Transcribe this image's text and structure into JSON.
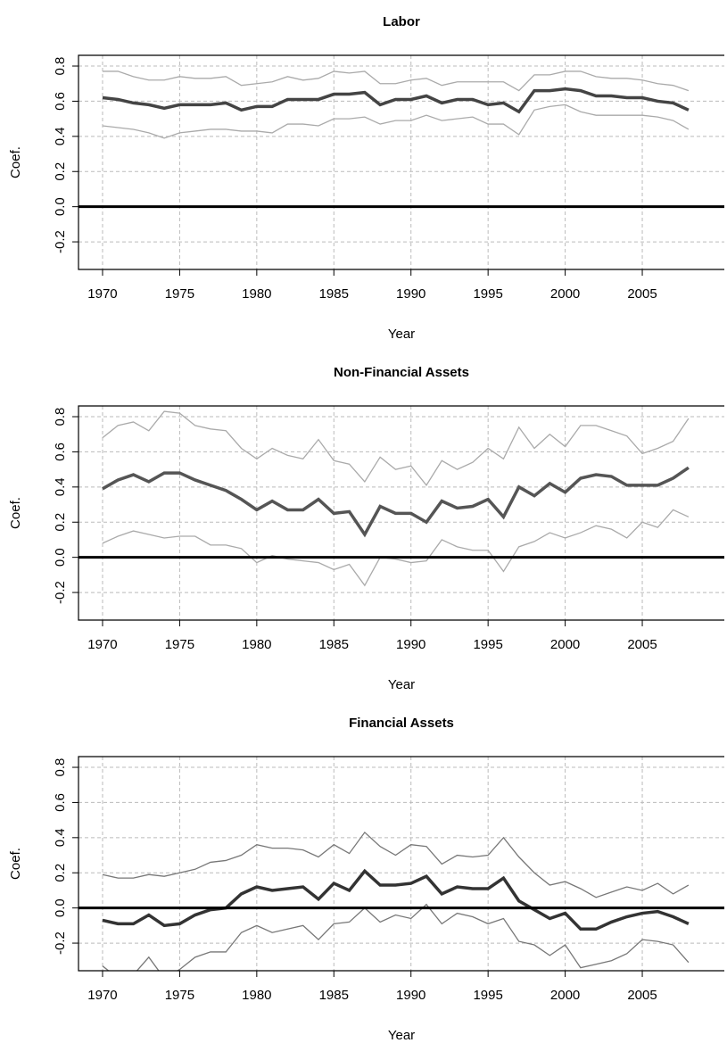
{
  "chart_data": [
    {
      "type": "line",
      "title": "Labor",
      "xlabel": "Year",
      "ylabel": "Coef.",
      "x": [
        1970,
        1971,
        1972,
        1973,
        1974,
        1975,
        1976,
        1977,
        1978,
        1979,
        1980,
        1981,
        1982,
        1983,
        1984,
        1985,
        1986,
        1987,
        1988,
        1989,
        1990,
        1991,
        1992,
        1993,
        1994,
        1995,
        1996,
        1997,
        1998,
        1999,
        2000,
        2001,
        2002,
        2003,
        2004,
        2005,
        2006,
        2007,
        2008
      ],
      "xlim": [
        1968.44,
        2010.32
      ],
      "xticks": [
        1970,
        1975,
        1980,
        1985,
        1990,
        1995,
        2000,
        2005
      ],
      "ylim": [
        -0.357,
        0.861
      ],
      "yticks": [
        -0.2,
        {
          "value": 0,
          "label": "0.0"
        },
        0.2,
        0.4,
        0.6,
        0.8
      ],
      "grid": true,
      "hline": 0,
      "series": [
        {
          "color": "#aaaaaa",
          "values": [
            0.77,
            0.77,
            0.74,
            0.72,
            0.72,
            0.74,
            0.73,
            0.73,
            0.74,
            0.69,
            0.7,
            0.71,
            0.74,
            0.72,
            0.73,
            0.77,
            0.76,
            0.77,
            0.7,
            0.7,
            0.72,
            0.73,
            0.69,
            0.71,
            0.71,
            0.71,
            0.71,
            0.66,
            0.75,
            0.75,
            0.77,
            0.77,
            0.74,
            0.73,
            0.73,
            0.72,
            0.7,
            0.69,
            0.66
          ]
        },
        {
          "color": "#aaaaaa",
          "values": [
            0.46,
            0.45,
            0.44,
            0.42,
            0.39,
            0.42,
            0.43,
            0.44,
            0.44,
            0.43,
            0.43,
            0.42,
            0.47,
            0.47,
            0.46,
            0.5,
            0.5,
            0.51,
            0.47,
            0.49,
            0.49,
            0.52,
            0.49,
            0.5,
            0.51,
            0.47,
            0.47,
            0.41,
            0.55,
            0.57,
            0.58,
            0.54,
            0.52,
            0.52,
            0.52,
            0.52,
            0.51,
            0.49,
            0.44
          ]
        },
        {
          "color": "#444444",
          "values": [
            0.62,
            0.61,
            0.59,
            0.58,
            0.56,
            0.58,
            0.58,
            0.58,
            0.59,
            0.55,
            0.57,
            0.57,
            0.61,
            0.61,
            0.61,
            0.64,
            0.64,
            0.65,
            0.58,
            0.61,
            0.61,
            0.63,
            0.59,
            0.61,
            0.61,
            0.58,
            0.59,
            0.54,
            0.66,
            0.66,
            0.67,
            0.66,
            0.63,
            0.63,
            0.62,
            0.62,
            0.6,
            0.59,
            0.55
          ]
        }
      ]
    },
    {
      "type": "line",
      "title": "Non-Financial Assets",
      "xlabel": "Year",
      "ylabel": "Coef.",
      "x": [
        1970,
        1971,
        1972,
        1973,
        1974,
        1975,
        1976,
        1977,
        1978,
        1979,
        1980,
        1981,
        1982,
        1983,
        1984,
        1985,
        1986,
        1987,
        1988,
        1989,
        1990,
        1991,
        1992,
        1993,
        1994,
        1995,
        1996,
        1997,
        1998,
        1999,
        2000,
        2001,
        2002,
        2003,
        2004,
        2005,
        2006,
        2007,
        2008
      ],
      "xlim": [
        1968.44,
        2010.32
      ],
      "xticks": [
        1970,
        1975,
        1980,
        1985,
        1990,
        1995,
        2000,
        2005
      ],
      "ylim": [
        -0.357,
        0.861
      ],
      "yticks": [
        -0.2,
        {
          "value": 0,
          "label": "0.0"
        },
        0.2,
        0.4,
        0.6,
        0.8
      ],
      "grid": true,
      "hline": 0,
      "series": [
        {
          "color": "#aaaaaa",
          "values": [
            0.68,
            0.75,
            0.77,
            0.72,
            0.83,
            0.82,
            0.75,
            0.73,
            0.72,
            0.62,
            0.56,
            0.62,
            0.58,
            0.56,
            0.67,
            0.55,
            0.53,
            0.43,
            0.57,
            0.5,
            0.52,
            0.41,
            0.55,
            0.5,
            0.54,
            0.62,
            0.56,
            0.74,
            0.62,
            0.7,
            0.63,
            0.75,
            0.75,
            0.72,
            0.69,
            0.59,
            0.62,
            0.66,
            0.79
          ]
        },
        {
          "color": "#aaaaaa",
          "values": [
            0.08,
            0.12,
            0.15,
            0.13,
            0.11,
            0.12,
            0.12,
            0.07,
            0.07,
            0.05,
            -0.03,
            0.01,
            -0.01,
            -0.02,
            -0.03,
            -0.07,
            -0.04,
            -0.16,
            0.0,
            -0.01,
            -0.03,
            -0.02,
            0.1,
            0.06,
            0.04,
            0.04,
            -0.08,
            0.06,
            0.09,
            0.14,
            0.11,
            0.14,
            0.18,
            0.16,
            0.11,
            0.2,
            0.17,
            0.27,
            0.23
          ]
        },
        {
          "color": "#555555",
          "values": [
            0.39,
            0.44,
            0.47,
            0.43,
            0.48,
            0.48,
            0.44,
            0.41,
            0.38,
            0.33,
            0.27,
            0.32,
            0.27,
            0.27,
            0.33,
            0.25,
            0.26,
            0.13,
            0.29,
            0.25,
            0.25,
            0.2,
            0.32,
            0.28,
            0.29,
            0.33,
            0.23,
            0.4,
            0.35,
            0.42,
            0.37,
            0.45,
            0.47,
            0.46,
            0.41,
            0.41,
            0.41,
            0.45,
            0.51
          ]
        }
      ]
    },
    {
      "type": "line",
      "title": "Financial Assets",
      "xlabel": "Year",
      "ylabel": "Coef.",
      "x": [
        1970,
        1971,
        1972,
        1973,
        1974,
        1975,
        1976,
        1977,
        1978,
        1979,
        1980,
        1981,
        1982,
        1983,
        1984,
        1985,
        1986,
        1987,
        1988,
        1989,
        1990,
        1991,
        1992,
        1993,
        1994,
        1995,
        1996,
        1997,
        1998,
        1999,
        2000,
        2001,
        2002,
        2003,
        2004,
        2005,
        2006,
        2007,
        2008
      ],
      "xlim": [
        1968.44,
        2010.32
      ],
      "xticks": [
        1970,
        1975,
        1980,
        1985,
        1990,
        1995,
        2000,
        2005
      ],
      "ylim": [
        -0.357,
        0.861
      ],
      "yticks": [
        -0.2,
        {
          "value": 0,
          "label": "0.0"
        },
        0.2,
        0.4,
        0.6,
        0.8
      ],
      "grid": true,
      "hline": 0,
      "series": [
        {
          "color": "#777777",
          "values": [
            0.19,
            0.17,
            0.17,
            0.19,
            0.18,
            0.2,
            0.22,
            0.26,
            0.27,
            0.3,
            0.36,
            0.34,
            0.34,
            0.33,
            0.29,
            0.36,
            0.31,
            0.43,
            0.35,
            0.3,
            0.36,
            0.35,
            0.25,
            0.3,
            0.29,
            0.3,
            0.4,
            0.29,
            0.2,
            0.13,
            0.15,
            0.11,
            0.06,
            0.09,
            0.12,
            0.1,
            0.14,
            0.08,
            0.13
          ]
        },
        {
          "color": "#777777",
          "values": [
            -0.33,
            -0.4,
            -0.38,
            -0.28,
            -0.4,
            -0.35,
            -0.28,
            -0.25,
            -0.25,
            -0.14,
            -0.1,
            -0.14,
            -0.12,
            -0.1,
            -0.18,
            -0.09,
            -0.08,
            0.0,
            -0.08,
            -0.04,
            -0.06,
            0.02,
            -0.09,
            -0.03,
            -0.05,
            -0.09,
            -0.06,
            -0.19,
            -0.21,
            -0.27,
            -0.21,
            -0.34,
            -0.32,
            -0.3,
            -0.26,
            -0.18,
            -0.19,
            -0.21,
            -0.31
          ]
        },
        {
          "color": "#333333",
          "values": [
            -0.07,
            -0.09,
            -0.09,
            -0.04,
            -0.1,
            -0.09,
            -0.04,
            -0.01,
            0.0,
            0.08,
            0.12,
            0.1,
            0.11,
            0.12,
            0.05,
            0.14,
            0.1,
            0.21,
            0.13,
            0.13,
            0.14,
            0.18,
            0.08,
            0.12,
            0.11,
            0.11,
            0.17,
            0.04,
            -0.01,
            -0.06,
            -0.03,
            -0.12,
            -0.12,
            -0.08,
            -0.05,
            -0.03,
            -0.02,
            -0.05,
            -0.09
          ]
        }
      ]
    }
  ]
}
